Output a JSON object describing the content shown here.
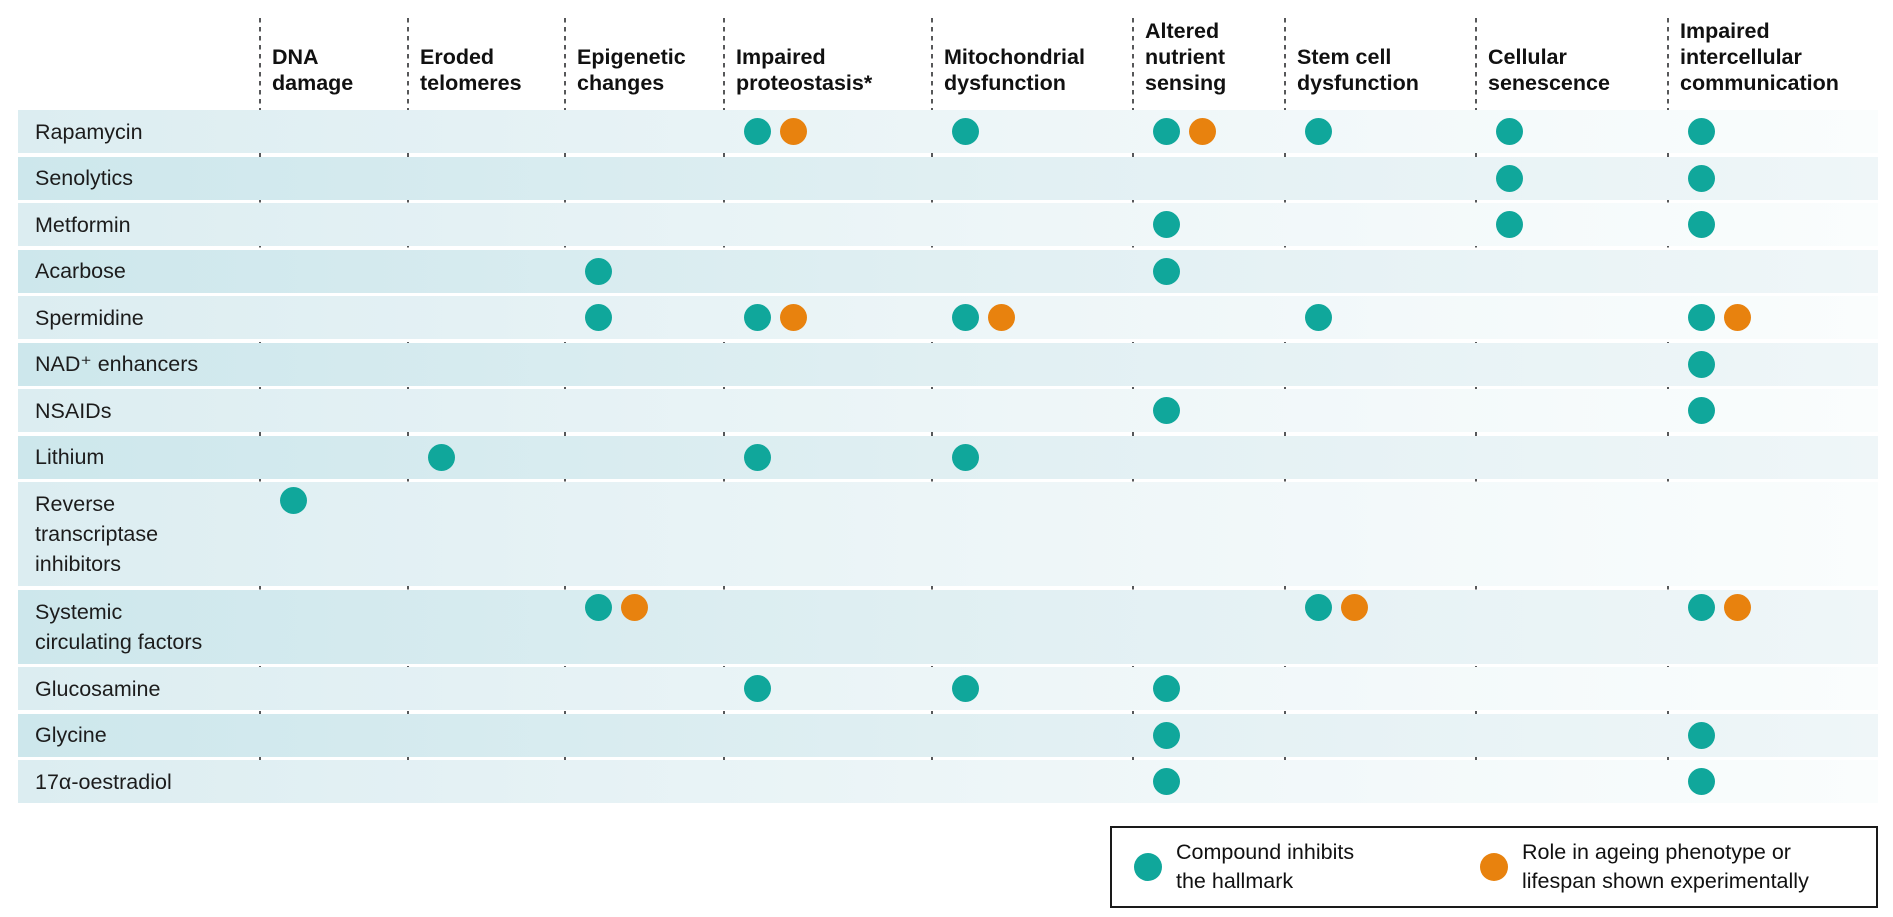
{
  "figure": {
    "colors": {
      "teal": "#10a79b",
      "orange": "#e8820e",
      "band_light_start": "#dcedf1",
      "band_dark_start": "#cde7ec",
      "divider": "#57585a",
      "text": "#1d1d1b"
    },
    "legend": {
      "items": [
        {
          "symbol": "teal-dot",
          "text": "Compound inhibits\nthe hallmark"
        },
        {
          "symbol": "orange-dot",
          "text": "Role in ageing phenotype or\nlifespan shown experimentally"
        }
      ]
    }
  },
  "chart_data": {
    "type": "table",
    "title": "",
    "codes": {
      "T": "teal dot — compound inhibits the hallmark",
      "O": "orange dot — role in ageing phenotype or lifespan shown experimentally"
    },
    "columns": [
      "DNA damage",
      "Eroded telomeres",
      "Epigenetic changes",
      "Impaired proteostasis*",
      "Mitochondrial dysfunction",
      "Altered nutrient sensing",
      "Stem cell dysfunction",
      "Cellular senescence",
      "Impaired intercellular communication"
    ],
    "column_header_lines": [
      [
        "DNA",
        "damage"
      ],
      [
        "Eroded",
        "telomeres"
      ],
      [
        "Epigenetic",
        "changes"
      ],
      [
        "Impaired",
        "proteostasis*"
      ],
      [
        "Mitochondrial",
        "dysfunction"
      ],
      [
        "Altered",
        "nutrient",
        "sensing"
      ],
      [
        "Stem cell",
        "dysfunction"
      ],
      [
        "Cellular",
        "senescence"
      ],
      [
        "Impaired",
        "intercellular",
        "communication"
      ]
    ],
    "rows": [
      {
        "compound": "Rapamycin",
        "label_lines": [
          "Rapamycin"
        ],
        "cells": [
          "",
          "",
          "",
          "TO",
          "T",
          "TO",
          "T",
          "T",
          "T"
        ]
      },
      {
        "compound": "Senolytics",
        "label_lines": [
          "Senolytics"
        ],
        "cells": [
          "",
          "",
          "",
          "",
          "",
          "",
          "",
          "T",
          "T"
        ]
      },
      {
        "compound": "Metformin",
        "label_lines": [
          "Metformin"
        ],
        "cells": [
          "",
          "",
          "",
          "",
          "",
          "T",
          "",
          "T",
          "T"
        ]
      },
      {
        "compound": "Acarbose",
        "label_lines": [
          "Acarbose"
        ],
        "cells": [
          "",
          "",
          "T",
          "",
          "",
          "T",
          "",
          "",
          ""
        ]
      },
      {
        "compound": "Spermidine",
        "label_lines": [
          "Spermidine"
        ],
        "cells": [
          "",
          "",
          "T",
          "TO",
          "TO",
          "",
          "T",
          "",
          "TO"
        ]
      },
      {
        "compound": "NAD⁺ enhancers",
        "label_lines": [
          "NAD⁺ enhancers"
        ],
        "cells": [
          "",
          "",
          "",
          "",
          "",
          "",
          "",
          "",
          "T"
        ]
      },
      {
        "compound": "NSAIDs",
        "label_lines": [
          "NSAIDs"
        ],
        "cells": [
          "",
          "",
          "",
          "",
          "",
          "T",
          "",
          "",
          "T"
        ]
      },
      {
        "compound": "Lithium",
        "label_lines": [
          "Lithium"
        ],
        "cells": [
          "",
          "T",
          "",
          "T",
          "T",
          "",
          "",
          "",
          ""
        ]
      },
      {
        "compound": "Reverse transcriptase inhibitors",
        "label_lines": [
          "Reverse",
          "transcriptase",
          "inhibitors"
        ],
        "cells": [
          "T",
          "",
          "",
          "",
          "",
          "",
          "",
          "",
          ""
        ]
      },
      {
        "compound": "Systemic circulating factors",
        "label_lines": [
          "Systemic",
          "circulating factors"
        ],
        "cells": [
          "",
          "",
          "TO",
          "",
          "",
          "",
          "TO",
          "",
          "TO"
        ]
      },
      {
        "compound": "Glucosamine",
        "label_lines": [
          "Glucosamine"
        ],
        "cells": [
          "",
          "",
          "",
          "T",
          "T",
          "T",
          "",
          "",
          ""
        ]
      },
      {
        "compound": "Glycine",
        "label_lines": [
          "Glycine"
        ],
        "cells": [
          "",
          "",
          "",
          "",
          "",
          "T",
          "",
          "",
          "T"
        ]
      },
      {
        "compound": "17α-oestradiol",
        "label_lines": [
          "17α-oestradiol"
        ],
        "cells": [
          "",
          "",
          "",
          "",
          "",
          "T",
          "",
          "",
          "T"
        ]
      }
    ]
  }
}
